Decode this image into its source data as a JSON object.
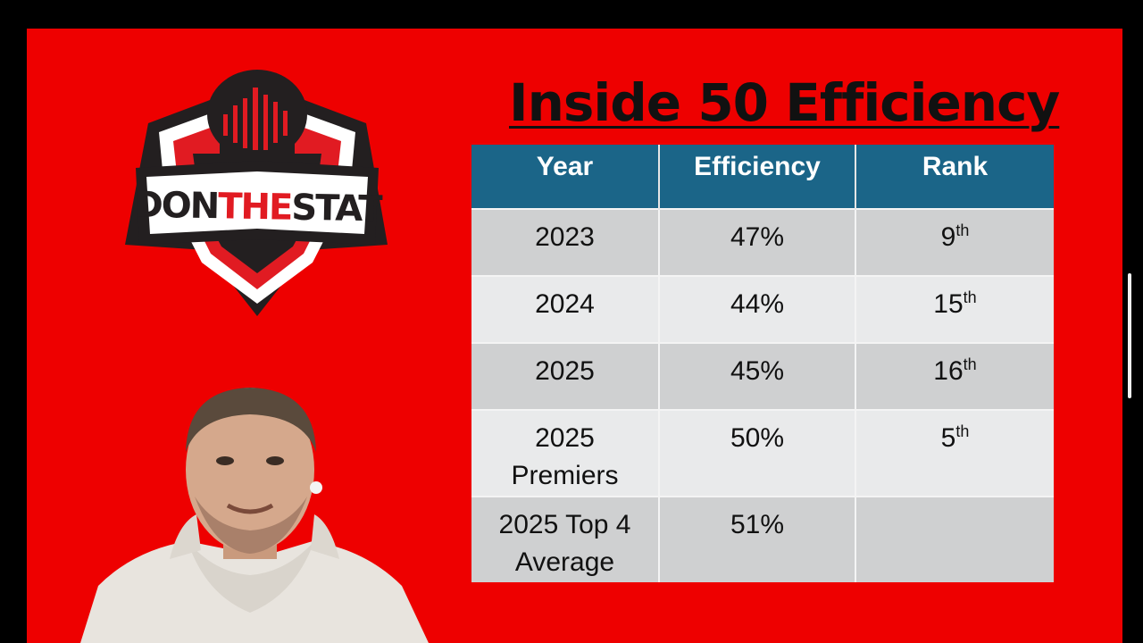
{
  "slide": {
    "title": "Inside 50 Efficiency",
    "background_color": "#ee0000"
  },
  "logo": {
    "text_don": "DON",
    "text_the": "THE",
    "text_stat": "STAT",
    "icon": "microphone-soundwave-shield-icon"
  },
  "table": {
    "header_color": "#1b6588",
    "headers": [
      "Year",
      "Efficiency",
      "Rank"
    ],
    "rows": [
      {
        "year_line1": "2023",
        "year_line2": "",
        "efficiency": "47%",
        "rank_num": "9",
        "rank_suffix": "th"
      },
      {
        "year_line1": "2024",
        "year_line2": "",
        "efficiency": "44%",
        "rank_num": "15",
        "rank_suffix": "th"
      },
      {
        "year_line1": "2025",
        "year_line2": "",
        "efficiency": "45%",
        "rank_num": "16",
        "rank_suffix": "th"
      },
      {
        "year_line1": "2025",
        "year_line2": "Premiers",
        "efficiency": "50%",
        "rank_num": "5",
        "rank_suffix": "th"
      },
      {
        "year_line1": "2025 Top 4",
        "year_line2": "Average",
        "efficiency": "51%",
        "rank_num": "",
        "rank_suffix": ""
      }
    ]
  },
  "presenter": {
    "icon": "presenter-webcam-icon"
  }
}
